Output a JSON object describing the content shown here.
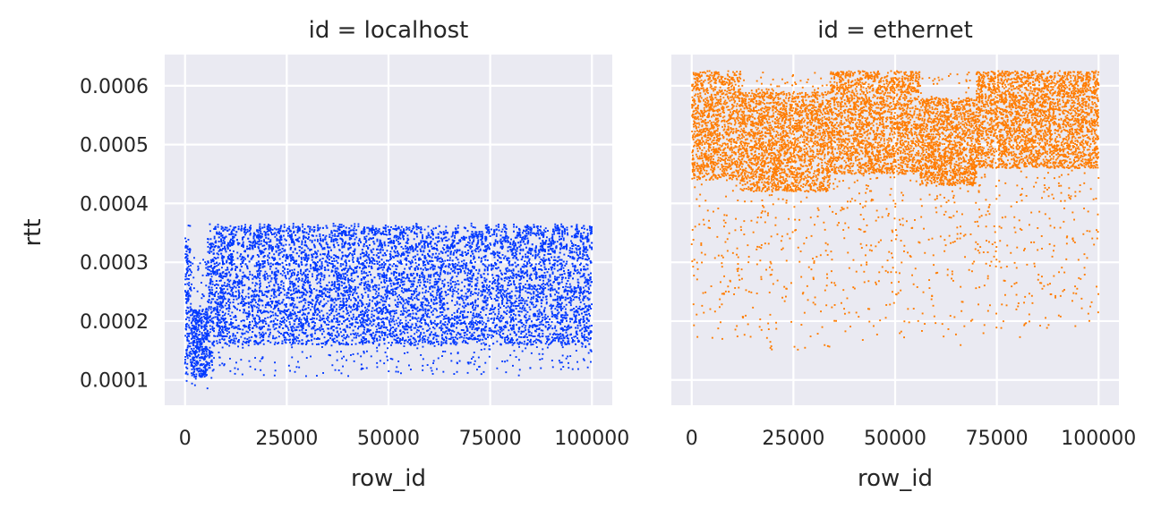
{
  "chart_data": {
    "type": "scatter",
    "ylabel": "rtt",
    "xlabel": "row_id",
    "xlim": [
      -5000,
      105000
    ],
    "ylim": [
      5.7e-05,
      0.000653
    ],
    "x_ticks": [
      0,
      25000,
      50000,
      75000,
      100000
    ],
    "x_tick_labels": [
      "0",
      "25000",
      "50000",
      "75000",
      "100000"
    ],
    "y_ticks": [
      0.0001,
      0.0002,
      0.0003,
      0.0004,
      0.0005,
      0.0006
    ],
    "y_tick_labels": [
      "0.0001",
      "0.0002",
      "0.0003",
      "0.0004",
      "0.0005",
      "0.0006"
    ],
    "grid": true,
    "facets": [
      {
        "title": "id = localhost",
        "xlabel": "row_id",
        "color": "#0038ff",
        "x_range": [
          0,
          100000
        ],
        "segments": [
          {
            "x": [
              0,
              1500
            ],
            "y_dense": [
              0.00011,
              0.00033
            ],
            "y_sparse": [
              9.5e-05,
              0.000365
            ]
          },
          {
            "x": [
              1500,
              5500
            ],
            "y_dense": [
              0.000105,
              0.00022
            ],
            "y_sparse": [
              8.5e-05,
              0.00031
            ]
          },
          {
            "x": [
              5500,
              7000
            ],
            "y_dense": [
              0.00012,
              0.00034
            ],
            "y_sparse": [
              0.0001,
              0.000365
            ]
          },
          {
            "x": [
              7000,
              100000
            ],
            "y_dense": [
              0.00016,
              0.000362
            ],
            "y_sparse": [
              0.000105,
              0.000366
            ]
          }
        ]
      },
      {
        "title": "id = ethernet",
        "xlabel": "row_id",
        "color": "#ff7c00",
        "x_range": [
          0,
          100000
        ],
        "segments": [
          {
            "x": [
              0,
              12000
            ],
            "y_dense": [
              0.00044,
              0.000625
            ],
            "y_sparse": [
              0.00016,
              0.000625
            ]
          },
          {
            "x": [
              12000,
              34000
            ],
            "y_dense": [
              0.00042,
              0.00059
            ],
            "y_sparse": [
              0.00015,
              0.000625
            ]
          },
          {
            "x": [
              34000,
              56000
            ],
            "y_dense": [
              0.00045,
              0.000625
            ],
            "y_sparse": [
              0.000165,
              0.000625
            ]
          },
          {
            "x": [
              56000,
              70000
            ],
            "y_dense": [
              0.00043,
              0.00058
            ],
            "y_sparse": [
              0.000155,
              0.000625
            ]
          },
          {
            "x": [
              70000,
              100000
            ],
            "y_dense": [
              0.00046,
              0.000625
            ],
            "y_sparse": [
              0.00017,
              0.000625
            ]
          }
        ]
      }
    ]
  }
}
